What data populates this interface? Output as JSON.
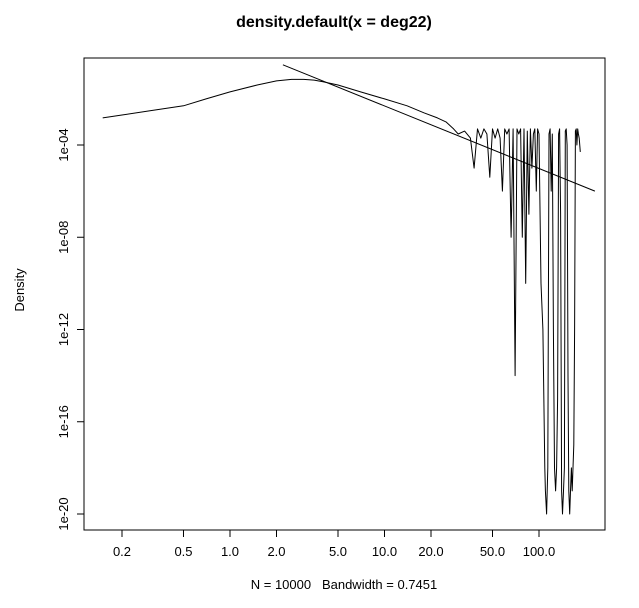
{
  "chart_data": {
    "type": "line",
    "title": "density.default(x = deg22)",
    "xlabel": "N = 10000   Bandwidth = 0.7451",
    "ylabel": "Density",
    "x_scale": "log",
    "y_scale": "log",
    "xlim": [
      0.1,
      230
    ],
    "ylim": [
      1e-20,
      0.1
    ],
    "x_ticks": [
      {
        "value": 0.2,
        "label": "0.2"
      },
      {
        "value": 0.5,
        "label": "0.5"
      },
      {
        "value": 1,
        "label": "1.0"
      },
      {
        "value": 2,
        "label": "2.0"
      },
      {
        "value": 5,
        "label": "5.0"
      },
      {
        "value": 10,
        "label": "10.0"
      },
      {
        "value": 20,
        "label": "20.0"
      },
      {
        "value": 50,
        "label": "50.0"
      },
      {
        "value": 100,
        "label": "100.0"
      }
    ],
    "y_ticks": [
      {
        "value": 1e-20,
        "label": "1e-20"
      },
      {
        "value": 1e-16,
        "label": "1e-16"
      },
      {
        "value": 1e-12,
        "label": "1e-12"
      },
      {
        "value": 1e-08,
        "label": "1e-08"
      },
      {
        "value": 0.0001,
        "label": "1e-04"
      }
    ],
    "grid": false,
    "legend": "none",
    "series": [
      {
        "x": [
          0.15,
          0.2,
          0.3,
          0.5,
          0.7,
          1.0,
          1.5,
          2.0,
          2.5,
          3.0,
          3.5,
          4.0,
          5.0,
          7.0,
          10,
          14,
          18,
          22,
          25,
          28,
          30,
          33,
          36,
          38,
          40,
          42,
          44,
          46,
          48,
          50,
          52,
          54,
          56,
          58,
          60,
          62,
          64,
          66,
          68,
          70,
          72,
          74,
          76,
          78,
          80,
          82,
          84,
          86,
          88,
          90,
          92,
          94,
          96,
          98,
          100,
          103,
          106,
          109,
          110,
          112,
          114,
          116,
          118,
          120,
          122,
          124,
          126,
          128,
          130,
          132,
          134,
          136,
          138,
          140,
          142,
          144,
          146,
          148,
          150,
          152,
          154,
          156,
          158,
          160,
          162,
          164,
          166,
          168,
          170,
          172,
          174,
          176,
          178,
          180,
          182,
          185
        ],
        "y": [
          0.0015,
          0.002,
          0.003,
          0.005,
          0.01,
          0.02,
          0.04,
          0.06,
          0.07,
          0.07,
          0.065,
          0.055,
          0.04,
          0.02,
          0.01,
          0.005,
          0.0025,
          0.0015,
          0.001,
          0.0005,
          0.0003,
          0.0004,
          0.0002,
          1e-05,
          0.0005,
          0.0002,
          0.0005,
          0.0003,
          4e-06,
          0.0005,
          0.0002,
          0.0005,
          0.0002,
          1e-06,
          0.0005,
          0.0003,
          0.0005,
          1e-08,
          0.0005,
          1e-14,
          0.0005,
          0.0003,
          0.0005,
          1e-08,
          0.0005,
          1e-10,
          0.0004,
          1e-07,
          0.0005,
          1e-05,
          0.0003,
          0.0005,
          1e-06,
          0.0005,
          0.0003,
          1e-10,
          1e-12,
          1e-18,
          1e-19,
          1e-20,
          1e-18,
          0.0003,
          0.0005,
          1e-06,
          0.0003,
          1e-12,
          1e-18,
          1e-19,
          1e-18,
          1e-15,
          0.0003,
          0.0005,
          1e-07,
          1e-19,
          1e-20,
          1e-19,
          1e-18,
          0.0004,
          0.0005,
          0.0001,
          1e-14,
          1e-19,
          1e-20,
          1e-19,
          1e-18,
          1e-19,
          1e-18,
          1e-17,
          1e-12,
          0.0004,
          0.0005,
          0.0001,
          0.0005,
          0.0003,
          0.0002,
          5e-05
        ]
      },
      {
        "type": "reference-line",
        "x": [
          2.2,
          230
        ],
        "y": [
          0.3,
          1e-06
        ]
      }
    ]
  }
}
